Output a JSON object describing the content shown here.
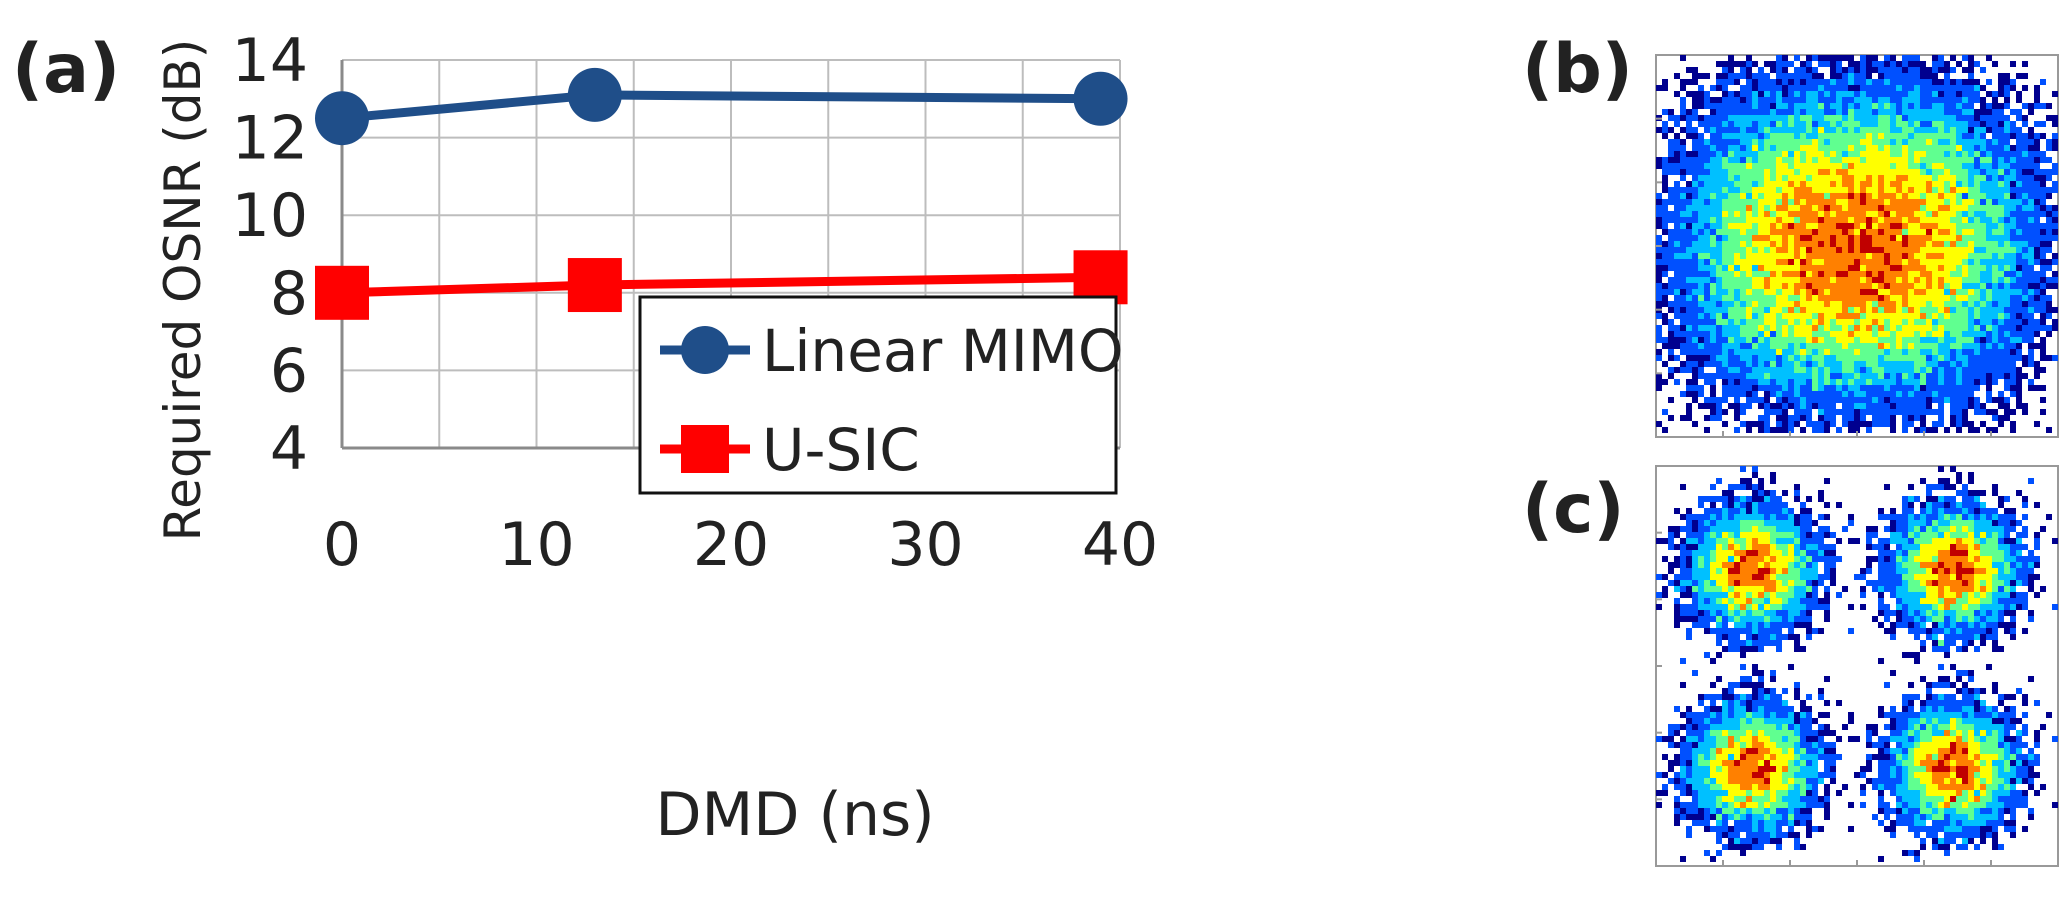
{
  "panels": {
    "a": {
      "label": "(a)"
    },
    "b": {
      "label": "(b)"
    },
    "c": {
      "label": "(c)"
    }
  },
  "chart_data": [
    {
      "type": "line",
      "xlabel": "DMD (ns)",
      "ylabel": "Required OSNR (dB)",
      "xlim": [
        0,
        40
      ],
      "ylim": [
        4,
        14
      ],
      "xticks": [
        "0",
        "10",
        "20",
        "30",
        "40"
      ],
      "yticks": [
        "4",
        "6",
        "8",
        "10",
        "12",
        "14"
      ],
      "grid": true,
      "legend_position": "bottom-right",
      "series": [
        {
          "name": "Linear MIMO",
          "color": "#1f4e89",
          "marker": "circle",
          "x": [
            0,
            13,
            39
          ],
          "y": [
            12.5,
            13.1,
            13.0
          ]
        },
        {
          "name": "U-SIC",
          "color": "#ff0000",
          "marker": "square",
          "x": [
            0,
            13,
            39
          ],
          "y": [
            8.0,
            8.2,
            8.4
          ]
        }
      ]
    },
    {
      "type": "heatmap",
      "description_panel": "b",
      "colormap": [
        "#ffffff",
        "#00008f",
        "#0050ff",
        "#00c0ff",
        "#60ff90",
        "#ffff00",
        "#ff8000",
        "#c00000"
      ]
    },
    {
      "type": "heatmap",
      "description_panel": "c",
      "colormap": [
        "#ffffff",
        "#00008f",
        "#0050ff",
        "#00c0ff",
        "#60ff90",
        "#ffff00",
        "#ff8000",
        "#c00000"
      ]
    }
  ]
}
